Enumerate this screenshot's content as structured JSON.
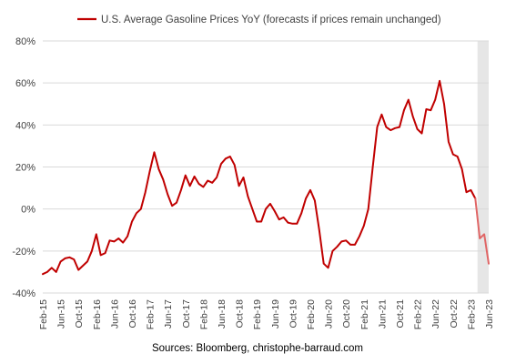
{
  "chart_data": {
    "type": "line",
    "legend": {
      "label": "U.S. Average Gasoline Prices YoY (forecasts if prices remain unchanged)",
      "placement": "top"
    },
    "source": "Sources: Bloomberg, christophe-barraud.com",
    "ylim": [
      -40,
      80
    ],
    "y_ticks": [
      -40,
      -20,
      0,
      20,
      40,
      60,
      80
    ],
    "y_tick_labels": [
      "-40%",
      "-20%",
      "0%",
      "20%",
      "40%",
      "60%",
      "80%"
    ],
    "x_tick_labels": [
      "Feb-15",
      "Jun-15",
      "Oct-15",
      "Feb-16",
      "Jun-16",
      "Oct-16",
      "Feb-17",
      "Jun-17",
      "Oct-17",
      "Feb-18",
      "Jun-18",
      "Oct-18",
      "Feb-19",
      "Jun-19",
      "Oct-19",
      "Feb-20",
      "Jun-20",
      "Oct-20",
      "Feb-21",
      "Jun-21",
      "Oct-21",
      "Feb-22",
      "Jun-22",
      "Oct-22",
      "Feb-23",
      "Jun-23"
    ],
    "forecast_shade": {
      "from": "Apr-23",
      "to": "Jun-23",
      "color": "#e6e6e6"
    },
    "gridlines": true,
    "series": [
      {
        "name": "U.S. Average Gasoline Prices YoY (forecasts if prices remain unchanged)",
        "color": "#c00000",
        "forecast_color": "#e06666",
        "x": [
          "Feb-15",
          "Mar-15",
          "Apr-15",
          "May-15",
          "Jun-15",
          "Jul-15",
          "Aug-15",
          "Sep-15",
          "Oct-15",
          "Nov-15",
          "Dec-15",
          "Jan-16",
          "Feb-16",
          "Mar-16",
          "Apr-16",
          "May-16",
          "Jun-16",
          "Jul-16",
          "Aug-16",
          "Sep-16",
          "Oct-16",
          "Nov-16",
          "Dec-16",
          "Jan-17",
          "Feb-17",
          "Mar-17",
          "Apr-17",
          "May-17",
          "Jun-17",
          "Jul-17",
          "Aug-17",
          "Sep-17",
          "Oct-17",
          "Nov-17",
          "Dec-17",
          "Jan-18",
          "Feb-18",
          "Mar-18",
          "Apr-18",
          "May-18",
          "Jun-18",
          "Jul-18",
          "Aug-18",
          "Sep-18",
          "Oct-18",
          "Nov-18",
          "Dec-18",
          "Jan-19",
          "Feb-19",
          "Mar-19",
          "Apr-19",
          "May-19",
          "Jun-19",
          "Jul-19",
          "Aug-19",
          "Sep-19",
          "Oct-19",
          "Nov-19",
          "Dec-19",
          "Jan-20",
          "Feb-20",
          "Mar-20",
          "Apr-20",
          "May-20",
          "Jun-20",
          "Jul-20",
          "Aug-20",
          "Sep-20",
          "Oct-20",
          "Nov-20",
          "Dec-20",
          "Jan-21",
          "Feb-21",
          "Mar-21",
          "Apr-21",
          "May-21",
          "Jun-21",
          "Jul-21",
          "Aug-21",
          "Sep-21",
          "Oct-21",
          "Nov-21",
          "Dec-21",
          "Jan-22",
          "Feb-22",
          "Mar-22",
          "Apr-22",
          "May-22",
          "Jun-22",
          "Jul-22",
          "Aug-22",
          "Sep-22",
          "Oct-22",
          "Nov-22",
          "Dec-22",
          "Jan-23",
          "Feb-23",
          "Mar-23",
          "Apr-23",
          "May-23",
          "Jun-23"
        ],
        "values": [
          -31,
          -30,
          -28,
          -30,
          -25,
          -23.5,
          -23,
          -24,
          -29,
          -27,
          -25,
          -20,
          -12,
          -22,
          -21,
          -15,
          -15.5,
          -14,
          -16,
          -13,
          -6,
          -2,
          0,
          8,
          18,
          27,
          19,
          14,
          7,
          1.5,
          3,
          9,
          16,
          11,
          15.5,
          12,
          10.5,
          13.5,
          12.5,
          15,
          21.5,
          24,
          25,
          21,
          11,
          15,
          6,
          0,
          -6,
          -6,
          0,
          2.5,
          -1,
          -5,
          -4,
          -6.5,
          -7,
          -7,
          -2,
          5,
          9,
          4,
          -10,
          -26,
          -28,
          -20,
          -18,
          -15.5,
          -15,
          -17,
          -17,
          -13,
          -8,
          0,
          20,
          39,
          45,
          39,
          37.5,
          38.5,
          39,
          47,
          52,
          44,
          38,
          36,
          47.5,
          47,
          52,
          61,
          50,
          32,
          26,
          25,
          19,
          8,
          9,
          5,
          -14,
          -12,
          -26
        ]
      }
    ]
  }
}
